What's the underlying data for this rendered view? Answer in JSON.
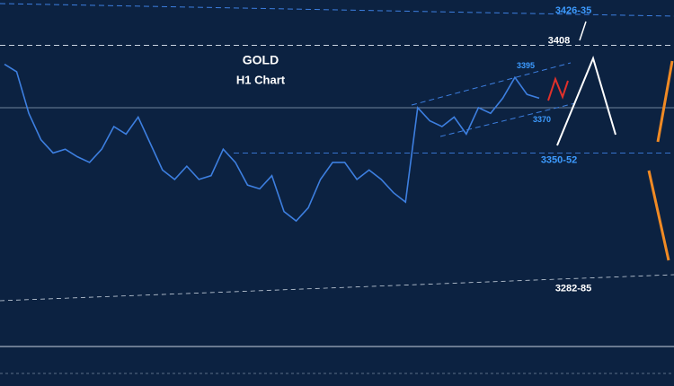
{
  "chart_data": {
    "type": "line",
    "title": "GOLD",
    "subtitle": "H1 Chart",
    "categories": [
      null,
      null,
      null,
      null,
      null,
      null,
      null,
      null,
      null,
      null,
      null,
      null,
      null,
      null,
      null,
      null,
      null,
      null,
      null,
      null,
      null,
      null,
      null,
      null,
      null,
      null,
      null,
      null,
      null,
      null,
      null,
      null,
      null,
      null,
      null,
      null,
      null,
      null,
      null,
      null,
      null,
      null,
      null,
      null,
      null
    ],
    "series": [
      {
        "color": "#3d7fe0",
        "values": [
          3398,
          3394,
          3372,
          3358,
          3351,
          3353,
          3349,
          3346,
          3353,
          3365,
          3361,
          3370,
          3356,
          3342,
          3337,
          3344,
          3337,
          3339,
          3353,
          3346,
          3334,
          3332,
          3339,
          3320,
          3315,
          3322,
          3337,
          3346,
          3346,
          3337,
          3342,
          3337,
          3330,
          3325,
          3375,
          3368,
          3365,
          3370,
          3361,
          3375,
          3372,
          3380,
          3391,
          3382,
          3380
        ]
      }
    ],
    "ylim": [
      3432,
      3249
    ],
    "annotations": [
      {
        "label": "3426-35",
        "value": 3430
      },
      {
        "label": "3408",
        "value": 3408
      },
      {
        "label": "3395",
        "value": 3395
      },
      {
        "label": "3370",
        "value": 3370
      },
      {
        "label": "3350-52",
        "value": 3351
      },
      {
        "label": "3282-85",
        "value": 3283.5
      }
    ]
  }
}
